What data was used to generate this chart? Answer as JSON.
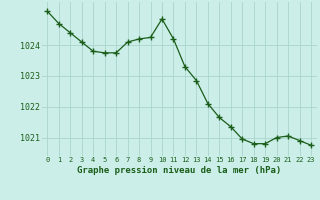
{
  "x": [
    0,
    1,
    2,
    3,
    4,
    5,
    6,
    7,
    8,
    9,
    10,
    11,
    12,
    13,
    14,
    15,
    16,
    17,
    18,
    19,
    20,
    21,
    22,
    23
  ],
  "y": [
    1025.1,
    1024.7,
    1024.4,
    1024.1,
    1023.8,
    1023.75,
    1023.75,
    1024.1,
    1024.2,
    1024.25,
    1024.85,
    1024.2,
    1023.3,
    1022.85,
    1022.1,
    1021.65,
    1021.35,
    1020.95,
    1020.8,
    1020.8,
    1021.0,
    1021.05,
    1020.9,
    1020.75
  ],
  "line_color": "#1a5e1a",
  "marker": "+",
  "marker_size": 4,
  "bg_color": "#cceee8",
  "grid_color": "#aad4cc",
  "xlabel": "Graphe pression niveau de la mer (hPa)",
  "xlabel_color": "#1a5e1a",
  "tick_label_color": "#1a5e1a",
  "ylim": [
    1020.4,
    1025.4
  ],
  "yticks": [
    1021,
    1022,
    1023,
    1024
  ],
  "xlim": [
    -0.5,
    23.5
  ],
  "xticks": [
    0,
    1,
    2,
    3,
    4,
    5,
    6,
    7,
    8,
    9,
    10,
    11,
    12,
    13,
    14,
    15,
    16,
    17,
    18,
    19,
    20,
    21,
    22,
    23
  ]
}
